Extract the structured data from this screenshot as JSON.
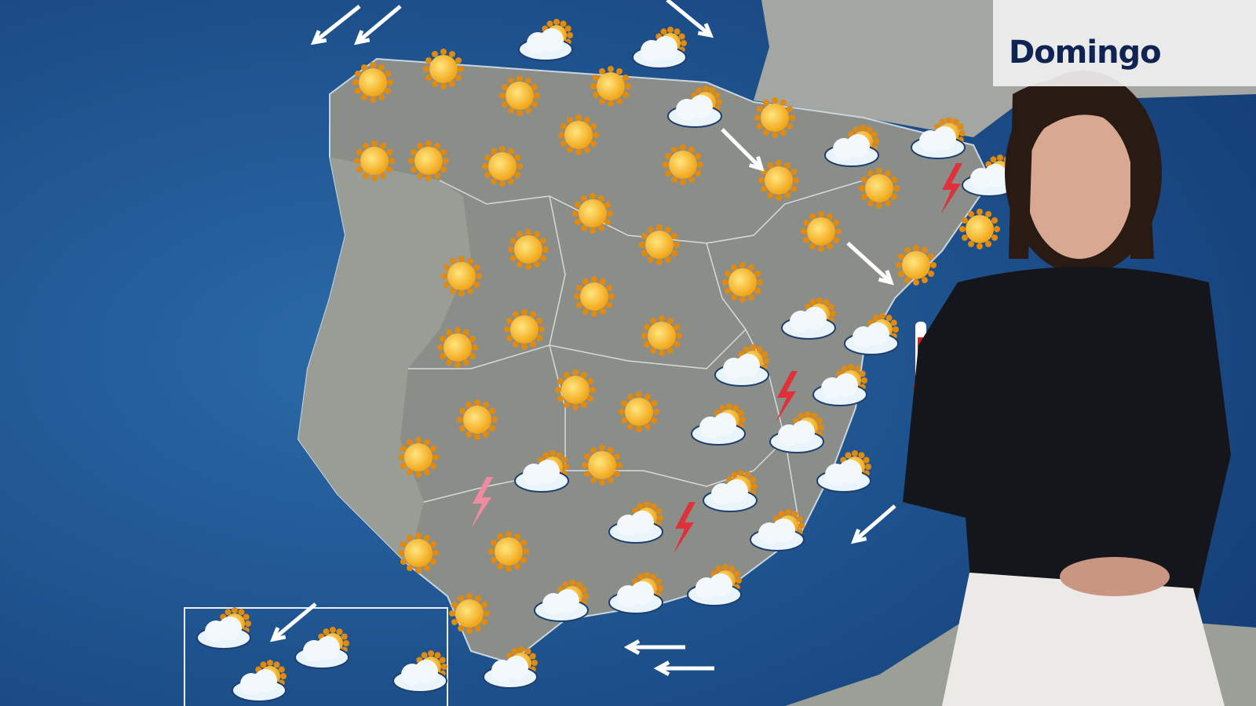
{
  "forecast": {
    "day_label": "Domingo",
    "colors": {
      "sea": "#1b4f8c",
      "land": "#8b8e88",
      "sun": "#f2a516",
      "lightning": "#e0303a",
      "label_text": "#0f2452"
    }
  },
  "legend_icon_types": [
    "sun-icon",
    "sun-cloud-icon",
    "lightning-icon",
    "wind-arrow-icon",
    "thermometer-icon"
  ]
}
